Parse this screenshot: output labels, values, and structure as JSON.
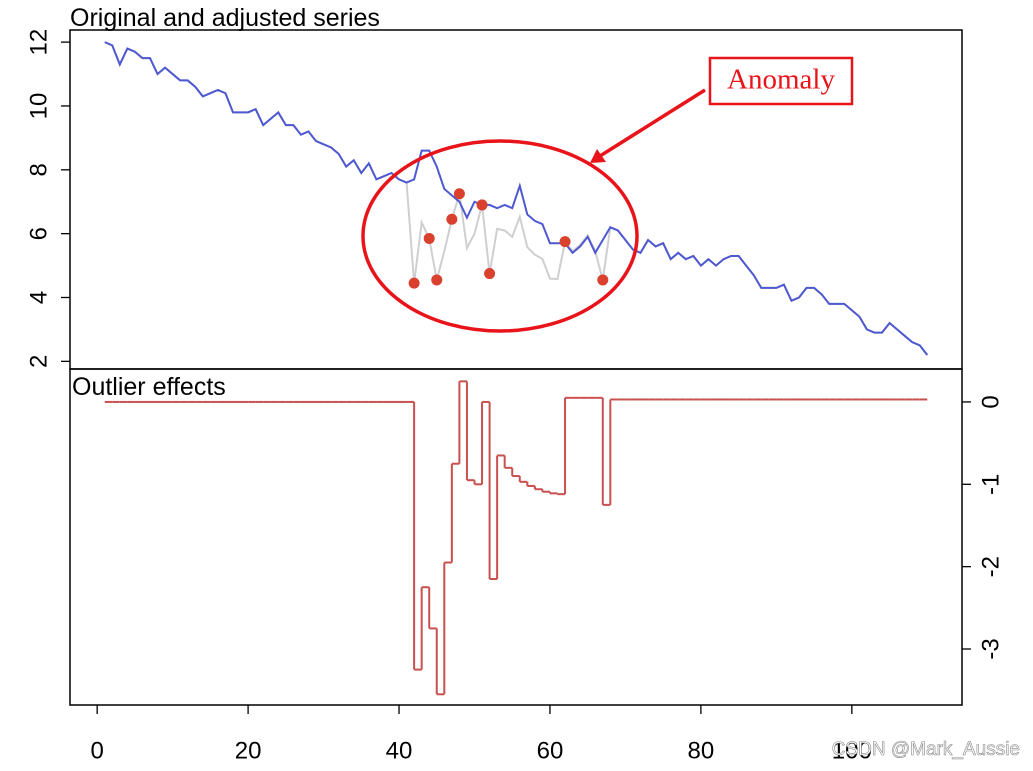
{
  "chart_data": [
    {
      "type": "line",
      "title": "Original and adjusted series",
      "x": [
        1,
        2,
        3,
        4,
        5,
        6,
        7,
        8,
        9,
        10,
        11,
        12,
        13,
        14,
        15,
        16,
        17,
        18,
        19,
        20,
        21,
        22,
        23,
        24,
        25,
        26,
        27,
        28,
        29,
        30,
        31,
        32,
        33,
        34,
        35,
        36,
        37,
        38,
        39,
        40,
        41,
        42,
        43,
        44,
        45,
        46,
        47,
        48,
        49,
        50,
        51,
        52,
        53,
        54,
        55,
        56,
        57,
        58,
        59,
        60,
        61,
        62,
        63,
        64,
        65,
        66,
        67,
        68,
        69,
        70,
        71,
        72,
        73,
        74,
        75,
        76,
        77,
        78,
        79,
        80,
        81,
        82,
        83,
        84,
        85,
        86,
        87,
        88,
        89,
        90,
        91,
        92,
        93,
        94,
        95,
        96,
        97,
        98,
        99,
        100,
        101,
        102,
        103,
        104,
        105,
        106,
        107,
        108,
        109,
        110
      ],
      "series": [
        {
          "color": "#cfcfcf",
          "values": [
            12.0,
            11.9,
            11.3,
            11.8,
            11.7,
            11.5,
            11.5,
            11.0,
            11.2,
            11.0,
            10.8,
            10.8,
            10.6,
            10.3,
            10.4,
            10.5,
            10.4,
            9.8,
            9.8,
            9.8,
            9.9,
            9.4,
            9.6,
            9.8,
            9.4,
            9.4,
            9.1,
            9.2,
            8.9,
            8.8,
            8.7,
            8.5,
            8.1,
            8.3,
            7.9,
            8.2,
            7.7,
            7.8,
            7.9,
            7.7,
            7.6,
            4.45,
            6.35,
            5.85,
            4.55,
            5.45,
            6.45,
            7.25,
            5.55,
            6.0,
            6.9,
            4.75,
            6.15,
            6.1,
            5.9,
            6.53,
            5.58,
            5.34,
            5.21,
            4.59,
            4.58,
            5.75,
            5.45,
            5.65,
            5.95,
            5.45,
            4.55,
            6.2,
            6.1,
            5.8,
            5.5,
            5.4,
            5.8,
            5.6,
            5.7,
            5.2,
            5.4,
            5.2,
            5.3,
            5.0,
            5.2,
            5.0,
            5.2,
            5.3,
            5.3,
            5.0,
            4.7,
            4.3,
            4.3,
            4.3,
            4.4,
            3.9,
            4.0,
            4.3,
            4.3,
            4.1,
            3.8,
            3.8,
            3.8,
            3.6,
            3.4,
            3.0,
            2.9,
            2.9,
            3.2,
            3.0,
            2.8,
            2.6,
            2.5,
            2.2
          ]
        },
        {
          "color": "#4e58d0",
          "values": [
            12.0,
            11.9,
            11.3,
            11.8,
            11.7,
            11.5,
            11.5,
            11.0,
            11.2,
            11.0,
            10.8,
            10.8,
            10.6,
            10.3,
            10.4,
            10.5,
            10.4,
            9.8,
            9.8,
            9.8,
            9.9,
            9.4,
            9.6,
            9.8,
            9.4,
            9.4,
            9.1,
            9.2,
            8.9,
            8.8,
            8.7,
            8.5,
            8.1,
            8.3,
            7.9,
            8.2,
            7.7,
            7.8,
            7.9,
            7.7,
            7.6,
            7.7,
            8.6,
            8.6,
            8.1,
            7.4,
            7.2,
            7.0,
            6.5,
            7.0,
            6.9,
            6.9,
            6.8,
            6.9,
            6.8,
            7.5,
            6.6,
            6.4,
            6.3,
            5.7,
            5.7,
            5.7,
            5.4,
            5.6,
            5.9,
            5.4,
            5.8,
            6.2,
            6.1,
            5.8,
            5.5,
            5.4,
            5.8,
            5.6,
            5.7,
            5.2,
            5.4,
            5.2,
            5.3,
            5.0,
            5.2,
            5.0,
            5.2,
            5.3,
            5.3,
            5.0,
            4.7,
            4.3,
            4.3,
            4.3,
            4.4,
            3.9,
            4.0,
            4.3,
            4.3,
            4.1,
            3.8,
            3.8,
            3.8,
            3.6,
            3.4,
            3.0,
            2.9,
            2.9,
            3.2,
            3.0,
            2.8,
            2.6,
            2.5,
            2.2
          ]
        }
      ],
      "points": {
        "color": "#d9412e",
        "x": [
          42,
          44,
          45,
          47,
          48,
          51,
          52,
          62,
          67
        ],
        "values": [
          4.45,
          5.85,
          4.55,
          6.45,
          7.25,
          6.9,
          4.75,
          5.75,
          4.55
        ]
      },
      "annotation": "Anomaly",
      "xlim": [
        -3.6,
        114.6
      ],
      "ylim": [
        1.76,
        12.38
      ],
      "yticks": [
        2,
        4,
        6,
        8,
        10,
        12
      ]
    },
    {
      "type": "step",
      "title": "Outlier effects",
      "x": [
        1,
        2,
        3,
        4,
        5,
        6,
        7,
        8,
        9,
        10,
        11,
        12,
        13,
        14,
        15,
        16,
        17,
        18,
        19,
        20,
        21,
        22,
        23,
        24,
        25,
        26,
        27,
        28,
        29,
        30,
        31,
        32,
        33,
        34,
        35,
        36,
        37,
        38,
        39,
        40,
        41,
        42,
        43,
        44,
        45,
        46,
        47,
        48,
        49,
        50,
        51,
        52,
        53,
        54,
        55,
        56,
        57,
        58,
        59,
        60,
        61,
        62,
        63,
        64,
        65,
        66,
        67,
        68,
        69,
        70,
        71,
        72,
        73,
        74,
        75,
        76,
        77,
        78,
        79,
        80,
        81,
        82,
        83,
        84,
        85,
        86,
        87,
        88,
        89,
        90,
        91,
        92,
        93,
        94,
        95,
        96,
        97,
        98,
        99,
        100,
        101,
        102,
        103,
        104,
        105,
        106,
        107,
        108,
        109,
        110
      ],
      "color": "#c8504f",
      "values": [
        0,
        0,
        0,
        0,
        0,
        0,
        0,
        0,
        0,
        0,
        0,
        0,
        0,
        0,
        0,
        0,
        0,
        0,
        0,
        0,
        0,
        0,
        0,
        0,
        0,
        0,
        0,
        0,
        0,
        0,
        0,
        0,
        0,
        0,
        0,
        0,
        0,
        0,
        0,
        0,
        0,
        -3.25,
        -2.25,
        -2.75,
        -3.55,
        -1.95,
        -0.75,
        0.25,
        -0.95,
        -1.0,
        0,
        -2.15,
        -0.65,
        -0.8,
        -0.9,
        -0.97,
        -1.02,
        -1.06,
        -1.09,
        -1.11,
        -1.12,
        0.05,
        0.05,
        0.05,
        0.05,
        0.05,
        -1.25,
        0.03,
        0.03,
        0.03,
        0.03,
        0.03,
        0.03,
        0.03,
        0.03,
        0.03,
        0.03,
        0.03,
        0.03,
        0.03,
        0.03,
        0.03,
        0.03,
        0.03,
        0.03,
        0.03,
        0.03,
        0.03,
        0.03,
        0.03,
        0.03,
        0.03,
        0.03,
        0.03,
        0.03,
        0.03,
        0.03,
        0.03,
        0.03,
        0.03,
        0.03,
        0.03,
        0.03,
        0.03,
        0.03,
        0.03,
        0.03,
        0.03,
        0.03,
        0.03
      ],
      "xlim": [
        -3.6,
        114.6
      ],
      "ylim": [
        -3.68,
        0.4
      ],
      "yticks": [
        0,
        -1,
        -2,
        -3
      ],
      "xticks": [
        0,
        20,
        40,
        60,
        80,
        100
      ]
    }
  ],
  "watermark": "CSDN @Mark_Aussie"
}
